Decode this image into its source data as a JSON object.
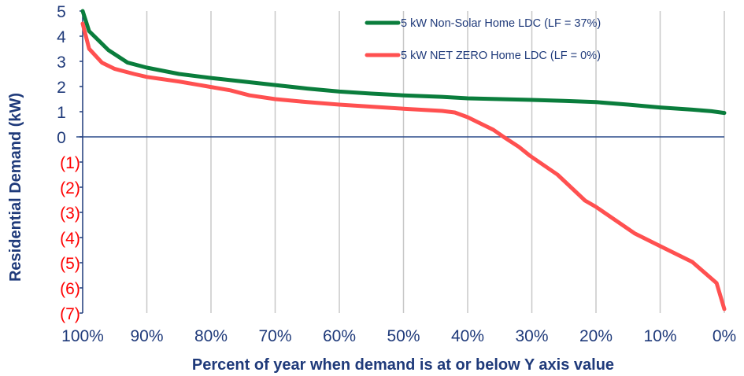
{
  "chart_data": {
    "type": "line",
    "title": "",
    "xlabel": "Percent of year when demand is at or below Y axis value",
    "ylabel": "Residential Demand (kW)",
    "xlim": [
      100,
      0
    ],
    "ylim": [
      -7,
      5
    ],
    "x_reversed": true,
    "grid": {
      "vertical": true,
      "horizontal": false
    },
    "legend_position": "top-right",
    "x_ticks": [
      {
        "value": 100,
        "label": "100%"
      },
      {
        "value": 90,
        "label": "90%"
      },
      {
        "value": 80,
        "label": "80%"
      },
      {
        "value": 70,
        "label": "70%"
      },
      {
        "value": 60,
        "label": "60%"
      },
      {
        "value": 50,
        "label": "50%"
      },
      {
        "value": 40,
        "label": "40%"
      },
      {
        "value": 30,
        "label": "30%"
      },
      {
        "value": 20,
        "label": "20%"
      },
      {
        "value": 10,
        "label": "10%"
      },
      {
        "value": 0,
        "label": "0%"
      }
    ],
    "y_ticks": [
      {
        "value": 5,
        "label": "5",
        "color": "#1f3a7a"
      },
      {
        "value": 4,
        "label": "4",
        "color": "#1f3a7a"
      },
      {
        "value": 3,
        "label": "3",
        "color": "#1f3a7a"
      },
      {
        "value": 2,
        "label": "2",
        "color": "#1f3a7a"
      },
      {
        "value": 1,
        "label": "1",
        "color": "#1f3a7a"
      },
      {
        "value": 0,
        "label": "0",
        "color": "#1f3a7a"
      },
      {
        "value": -1,
        "label": "(1)",
        "color": "#ff0000"
      },
      {
        "value": -2,
        "label": "(2)",
        "color": "#ff0000"
      },
      {
        "value": -3,
        "label": "(3)",
        "color": "#ff0000"
      },
      {
        "value": -4,
        "label": "(4)",
        "color": "#ff0000"
      },
      {
        "value": -5,
        "label": "(5)",
        "color": "#ff0000"
      },
      {
        "value": -6,
        "label": "(6)",
        "color": "#ff0000"
      },
      {
        "value": -7,
        "label": "(7)",
        "color": "#ff0000"
      }
    ],
    "series": [
      {
        "name": "5 kW Non-Solar Home LDC (LF = 37%)",
        "color": "#0a7d3c",
        "x": [
          100,
          99,
          96,
          93,
          90,
          85,
          80,
          75,
          70,
          65,
          60,
          55,
          50,
          44,
          40,
          35,
          30,
          25,
          20,
          15,
          10,
          5,
          2,
          0
        ],
        "y": [
          5.0,
          4.2,
          3.45,
          2.95,
          2.75,
          2.5,
          2.34,
          2.2,
          2.06,
          1.92,
          1.8,
          1.72,
          1.65,
          1.59,
          1.53,
          1.5,
          1.47,
          1.43,
          1.38,
          1.28,
          1.17,
          1.08,
          1.02,
          0.95
        ]
      },
      {
        "name": "5 kW NET ZERO Home LDC (LF = 0%)",
        "color": "#ff5050",
        "x": [
          100,
          99,
          97,
          95,
          92,
          90,
          85,
          80,
          77,
          74,
          70,
          65,
          60,
          55,
          50,
          44,
          42,
          40,
          36,
          34.4,
          32,
          30.3,
          26,
          21.7,
          20,
          14,
          10,
          5,
          1.2,
          0
        ],
        "y": [
          4.5,
          3.5,
          2.95,
          2.7,
          2.5,
          2.38,
          2.2,
          1.98,
          1.85,
          1.65,
          1.5,
          1.38,
          1.28,
          1.2,
          1.12,
          1.03,
          0.97,
          0.78,
          0.28,
          0.0,
          -0.4,
          -0.75,
          -1.5,
          -2.53,
          -2.78,
          -3.83,
          -4.34,
          -4.97,
          -5.81,
          -6.84
        ]
      }
    ]
  }
}
